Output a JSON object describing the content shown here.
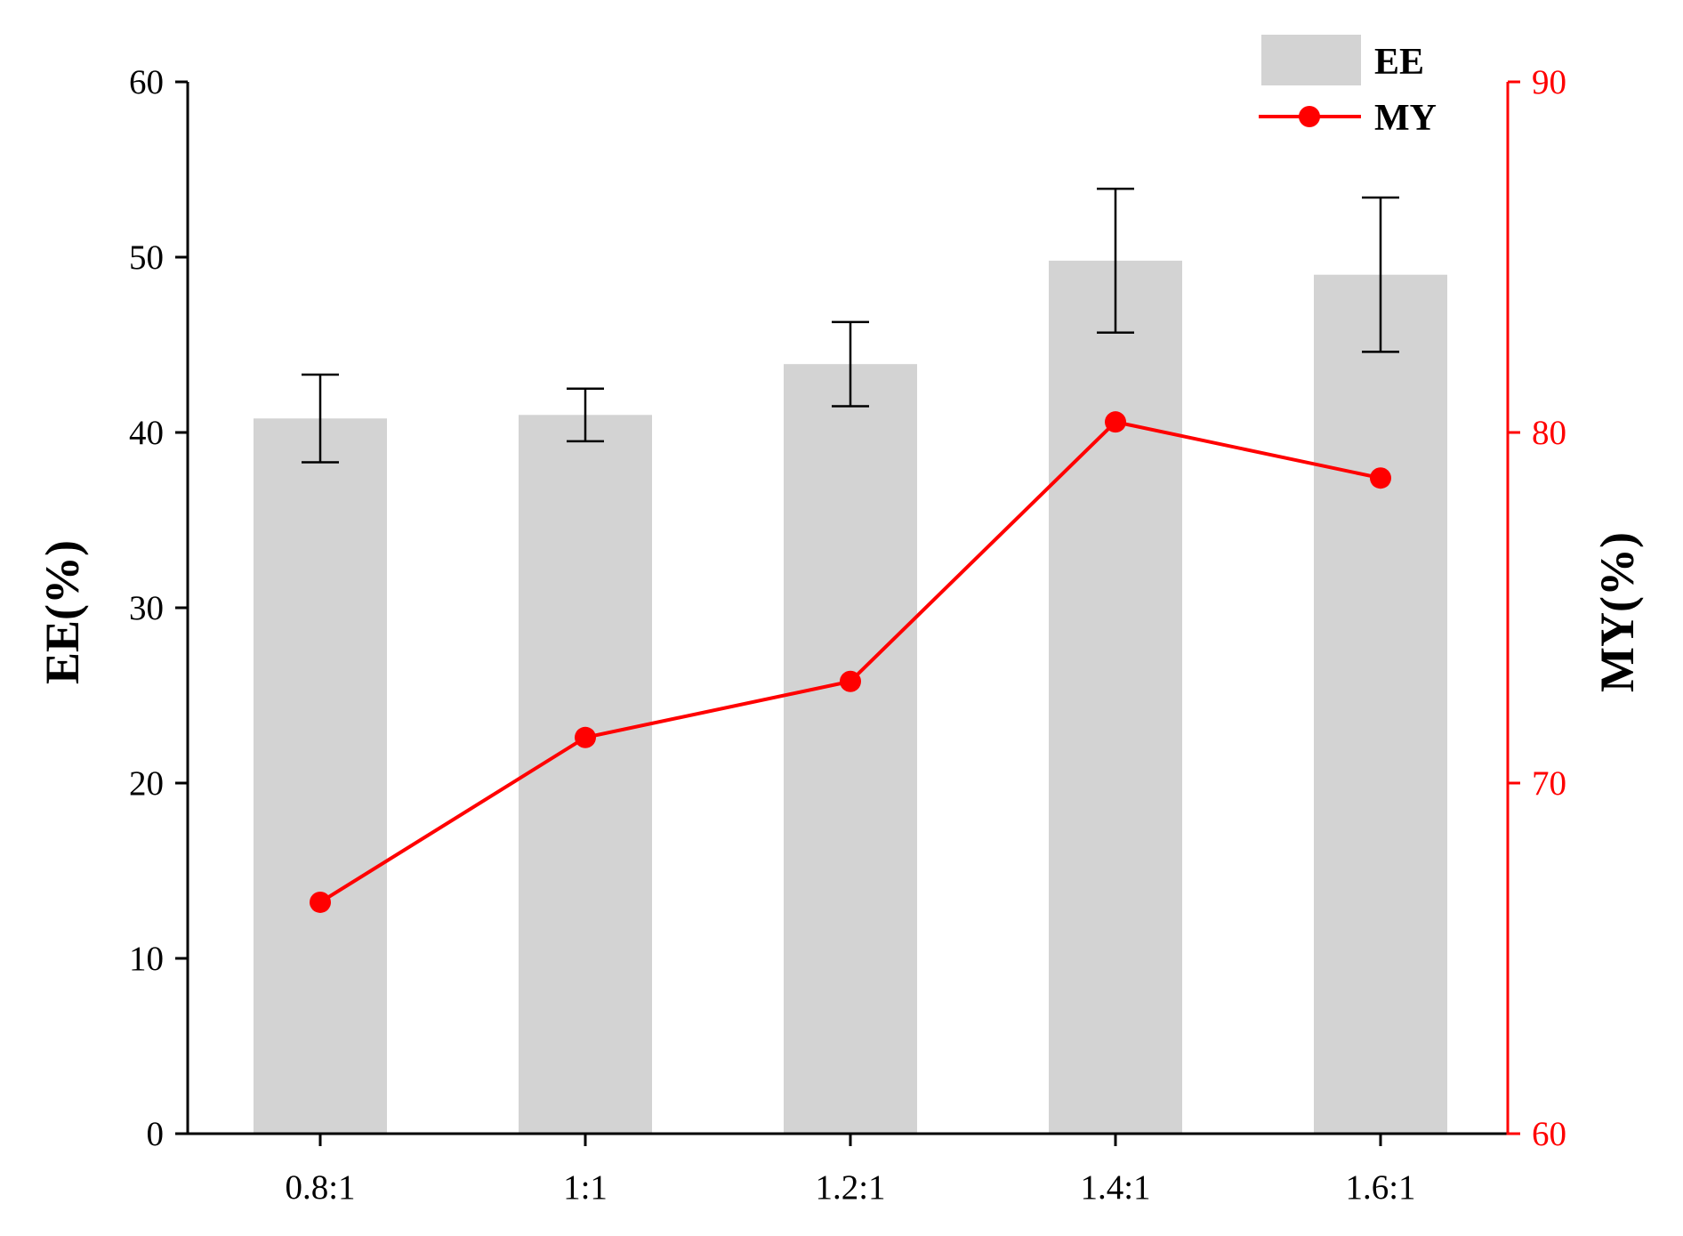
{
  "chart_data": {
    "type": "bar",
    "categories": [
      "0.8:1",
      "1:1",
      "1.2:1",
      "1.4:1",
      "1.6:1"
    ],
    "series": [
      {
        "name": "EE",
        "kind": "bar",
        "axis": "left",
        "values": [
          40.8,
          41.0,
          43.9,
          49.8,
          49.0
        ],
        "errors": [
          2.5,
          1.5,
          2.4,
          4.1,
          4.4
        ]
      },
      {
        "name": "MY",
        "kind": "line",
        "axis": "right",
        "values": [
          66.6,
          71.3,
          72.9,
          80.3,
          78.7
        ]
      }
    ],
    "xlabel": "",
    "ylabel": "EE(%)",
    "y2label": "MY(%)",
    "ylim": [
      0,
      60
    ],
    "y2lim": [
      60,
      90
    ],
    "yticks": [
      0,
      10,
      20,
      30,
      40,
      50,
      60
    ],
    "y2ticks": [
      60,
      70,
      80,
      90
    ],
    "legend_position": "top-right",
    "grid": false,
    "colors": {
      "bar": "#d3d3d3",
      "line": "#ff0000",
      "axis": "#000000",
      "right_axis": "#ff0000"
    }
  }
}
